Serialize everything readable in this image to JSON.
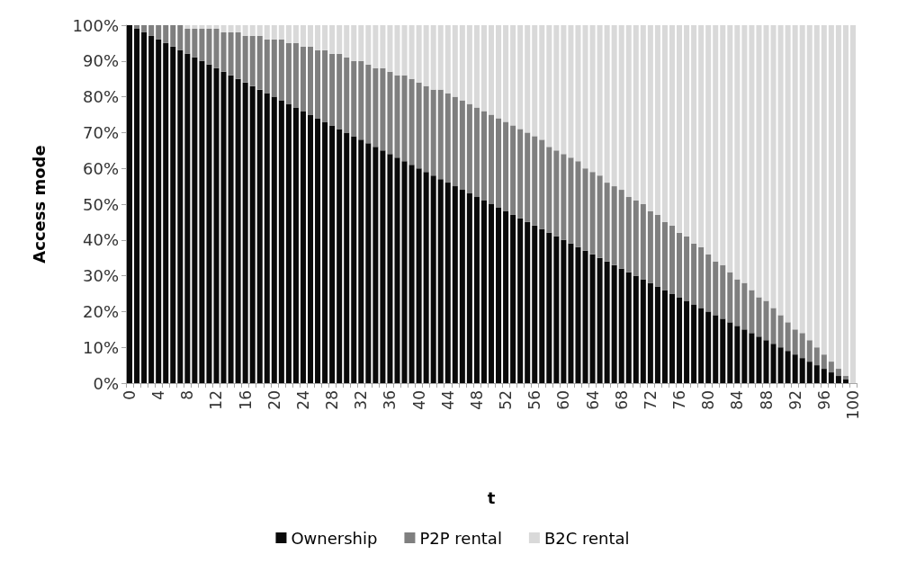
{
  "chart_data": {
    "type": "bar",
    "stacked": true,
    "xlabel": "t",
    "ylabel": "Access mode",
    "categories": [
      "0",
      null,
      null,
      null,
      "4",
      null,
      null,
      null,
      "8",
      null,
      null,
      null,
      "12",
      null,
      null,
      null,
      "16",
      null,
      null,
      null,
      "20",
      null,
      null,
      null,
      "24",
      null,
      null,
      null,
      "28",
      null,
      null,
      null,
      "32",
      null,
      null,
      null,
      "36",
      null,
      null,
      null,
      "40",
      null,
      null,
      null,
      "44",
      null,
      null,
      null,
      "48",
      null,
      null,
      null,
      "52",
      null,
      null,
      null,
      "56",
      null,
      null,
      null,
      "60",
      null,
      null,
      null,
      "64",
      null,
      null,
      null,
      "68",
      null,
      null,
      null,
      "72",
      null,
      null,
      null,
      "76",
      null,
      null,
      null,
      "80",
      null,
      null,
      null,
      "84",
      null,
      null,
      null,
      "88",
      null,
      null,
      null,
      "92",
      null,
      null,
      null,
      "96",
      null,
      null,
      null,
      "100"
    ],
    "series": [
      {
        "name": "Ownership",
        "color": "#0a0a0a",
        "values": [
          100,
          99,
          98,
          97,
          96,
          95,
          94,
          93,
          92,
          91,
          90,
          89,
          88,
          87,
          86,
          85,
          84,
          83,
          82,
          81,
          80,
          79,
          78,
          77,
          76,
          75,
          74,
          73,
          72,
          71,
          70,
          69,
          68,
          67,
          66,
          65,
          64,
          63,
          62,
          61,
          60,
          59,
          58,
          57,
          56,
          55,
          54,
          53,
          52,
          51,
          50,
          49,
          48,
          47,
          46,
          45,
          44,
          43,
          42,
          41,
          40,
          39,
          38,
          37,
          36,
          35,
          34,
          33,
          32,
          31,
          30,
          29,
          28,
          27,
          26,
          25,
          24,
          23,
          22,
          21,
          20,
          19,
          18,
          17,
          16,
          15,
          14,
          13,
          12,
          11,
          10,
          9,
          8,
          7,
          6,
          5,
          4,
          3,
          2,
          1,
          0
        ]
      },
      {
        "name": "P2P rental",
        "color": "#7f7f7f",
        "values": [
          0,
          1,
          2,
          3,
          4,
          5,
          6,
          7,
          7,
          8,
          9,
          10,
          11,
          11,
          12,
          13,
          13,
          14,
          15,
          15,
          16,
          17,
          17,
          18,
          18,
          19,
          19,
          20,
          20,
          21,
          21,
          21,
          22,
          22,
          22,
          23,
          23,
          23,
          24,
          24,
          24,
          24,
          24,
          25,
          25,
          25,
          25,
          25,
          25,
          25,
          25,
          25,
          25,
          25,
          25,
          25,
          25,
          25,
          24,
          24,
          24,
          24,
          24,
          23,
          23,
          23,
          22,
          22,
          22,
          21,
          21,
          21,
          20,
          20,
          19,
          19,
          18,
          18,
          17,
          17,
          16,
          15,
          15,
          14,
          13,
          13,
          12,
          11,
          11,
          10,
          9,
          8,
          7,
          7,
          6,
          5,
          4,
          3,
          2,
          1,
          0
        ]
      },
      {
        "name": "B2C rental",
        "color": "#d9d9d9",
        "values": [
          0,
          0,
          0,
          0,
          0,
          0,
          0,
          0,
          1,
          1,
          1,
          1,
          1,
          2,
          2,
          2,
          3,
          3,
          3,
          4,
          4,
          4,
          5,
          5,
          6,
          6,
          7,
          7,
          8,
          8,
          9,
          10,
          10,
          11,
          12,
          12,
          13,
          14,
          14,
          15,
          16,
          17,
          18,
          18,
          19,
          20,
          21,
          22,
          23,
          24,
          25,
          26,
          27,
          28,
          29,
          30,
          31,
          32,
          34,
          35,
          36,
          37,
          38,
          40,
          41,
          42,
          44,
          45,
          46,
          48,
          49,
          50,
          52,
          53,
          55,
          56,
          58,
          59,
          61,
          62,
          64,
          66,
          67,
          69,
          71,
          72,
          74,
          76,
          77,
          79,
          81,
          83,
          85,
          86,
          88,
          90,
          92,
          94,
          96,
          98,
          100
        ]
      }
    ],
    "ylim": [
      0,
      100
    ],
    "yticks": [
      {
        "value": 0,
        "label": "0%"
      },
      {
        "value": 10,
        "label": "10%"
      },
      {
        "value": 20,
        "label": "20%"
      },
      {
        "value": 30,
        "label": "30%"
      },
      {
        "value": 40,
        "label": "40%"
      },
      {
        "value": 50,
        "label": "50%"
      },
      {
        "value": 60,
        "label": "60%"
      },
      {
        "value": 70,
        "label": "70%"
      },
      {
        "value": 80,
        "label": "80%"
      },
      {
        "value": 90,
        "label": "90%"
      },
      {
        "value": 100,
        "label": "100%"
      }
    ],
    "grid": false,
    "legend": "bottom"
  }
}
